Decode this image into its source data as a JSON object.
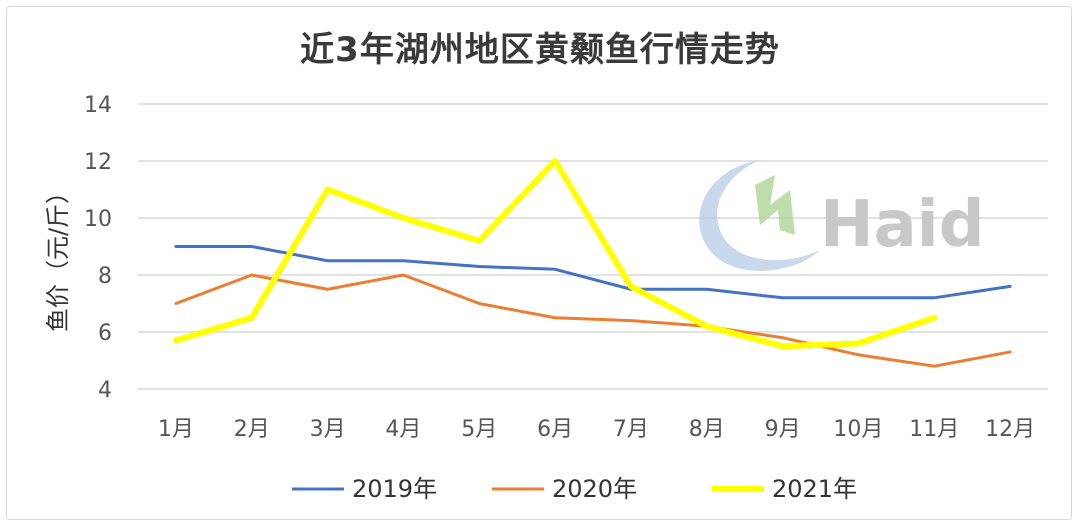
{
  "chart_data": {
    "type": "line",
    "title": "近3年湖州地区黄颡鱼行情走势",
    "ylabel": "鱼价（元/斤）",
    "xlabel": "",
    "ylim": [
      4,
      14
    ],
    "yticks": [
      4,
      6,
      8,
      10,
      12,
      14
    ],
    "grid": true,
    "legend_position": "bottom",
    "categories": [
      "1月",
      "2月",
      "3月",
      "4月",
      "5月",
      "6月",
      "7月",
      "8月",
      "9月",
      "10月",
      "11月",
      "12月"
    ],
    "series": [
      {
        "name": "2019年",
        "color": "#4472c4",
        "values": [
          9.0,
          9.0,
          8.5,
          8.5,
          8.3,
          8.2,
          7.5,
          7.5,
          7.2,
          7.2,
          7.2,
          7.6
        ]
      },
      {
        "name": "2020年",
        "color": "#ed7d31",
        "values": [
          7.0,
          8.0,
          7.5,
          8.0,
          7.0,
          6.5,
          6.4,
          6.2,
          5.8,
          5.2,
          4.8,
          5.3
        ]
      },
      {
        "name": "2021年",
        "color": "#ffff00",
        "values": [
          5.7,
          6.5,
          11.0,
          10.0,
          9.2,
          12.0,
          7.6,
          6.2,
          5.5,
          5.6,
          6.5,
          null
        ]
      }
    ]
  },
  "watermark": {
    "text": "Haid"
  }
}
